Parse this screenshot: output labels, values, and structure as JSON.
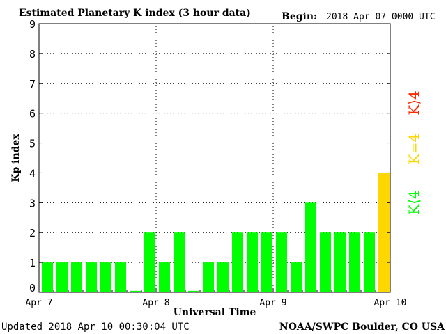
{
  "header": {
    "title": "Estimated Planetary K index (3 hour data)",
    "begin_label": "Begin:",
    "begin_value": "2018 Apr 07 0000 UTC"
  },
  "footer": {
    "updated": "Updated 2018 Apr 10 00:30:04 UTC",
    "credit": "NOAA/SWPC Boulder, CO USA"
  },
  "legend": {
    "gt4": "K⟩4",
    "eq4": "K=4",
    "lt4": "K⟨4"
  },
  "colors": {
    "below4": "#00ff00",
    "equal4": "#ffd700",
    "above4": "#ff2a00",
    "axis": "#000000"
  },
  "chart_data": {
    "type": "bar",
    "title": "Estimated Planetary K index (3 hour data)",
    "xlabel": "Universal Time",
    "ylabel": "Kp index",
    "ylim": [
      0,
      9
    ],
    "yticks": [
      "0",
      "1",
      "2",
      "3",
      "4",
      "5",
      "6",
      "7",
      "8",
      "9"
    ],
    "xticks": [
      "Apr 7",
      "Apr 8",
      "Apr 9",
      "Apr 10"
    ],
    "grid": "dotted at Apr 8, Apr 9 and every integer Kp",
    "legend_placement": "right, vertical",
    "values": [
      1,
      1,
      1,
      1,
      1,
      1,
      0.05,
      2,
      1,
      2,
      0.05,
      1,
      1,
      2,
      2,
      2,
      2,
      1,
      3,
      2,
      2,
      2,
      2,
      4
    ]
  }
}
